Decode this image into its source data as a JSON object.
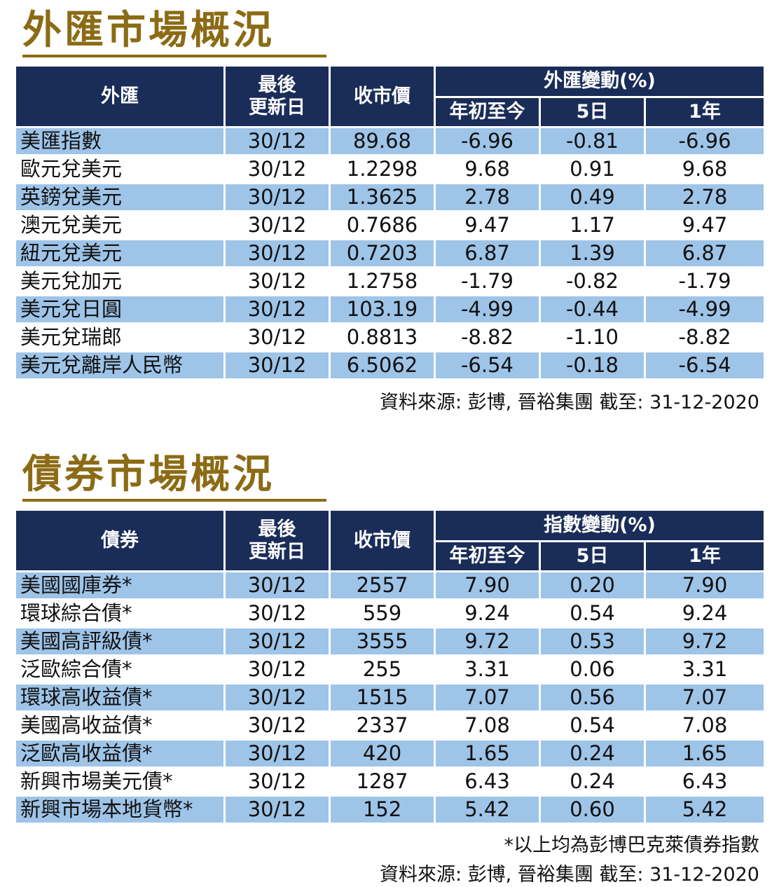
{
  "fx": {
    "title": "外匯市場概況",
    "headers": {
      "name": "外匯",
      "date_line1": "最後",
      "date_line2": "更新日",
      "price": "收市價",
      "change_group": "外匯變動(%)",
      "ytd": "年初至今",
      "d5": "5日",
      "y1": "1年"
    },
    "rows": [
      {
        "name": "美匯指數",
        "date": "30/12",
        "price": "89.68",
        "ytd": "-6.96",
        "d5": "-0.81",
        "y1": "-6.96"
      },
      {
        "name": "歐元兌美元",
        "date": "30/12",
        "price": "1.2298",
        "ytd": "9.68",
        "d5": "0.91",
        "y1": "9.68"
      },
      {
        "name": "英鎊兌美元",
        "date": "30/12",
        "price": "1.3625",
        "ytd": "2.78",
        "d5": "0.49",
        "y1": "2.78"
      },
      {
        "name": "澳元兌美元",
        "date": "30/12",
        "price": "0.7686",
        "ytd": "9.47",
        "d5": "1.17",
        "y1": "9.47"
      },
      {
        "name": "紐元兌美元",
        "date": "30/12",
        "price": "0.7203",
        "ytd": "6.87",
        "d5": "1.39",
        "y1": "6.87"
      },
      {
        "name": "美元兌加元",
        "date": "30/12",
        "price": "1.2758",
        "ytd": "-1.79",
        "d5": "-0.82",
        "y1": "-1.79"
      },
      {
        "name": "美元兌日圓",
        "date": "30/12",
        "price": "103.19",
        "ytd": "-4.99",
        "d5": "-0.44",
        "y1": "-4.99"
      },
      {
        "name": "美元兌瑞郎",
        "date": "30/12",
        "price": "0.8813",
        "ytd": "-8.82",
        "d5": "-1.10",
        "y1": "-8.82"
      },
      {
        "name": "美元兌離岸人民幣",
        "date": "30/12",
        "price": "6.5062",
        "ytd": "-6.54",
        "d5": "-0.18",
        "y1": "-6.54"
      }
    ],
    "source": "資料來源: 彭博, 晉裕集團 截至:  31-12-2020"
  },
  "bond": {
    "title": "債券市場概況",
    "headers": {
      "name": "債券",
      "date_line1": "最後",
      "date_line2": "更新日",
      "price": "收市價",
      "change_group": "指數變動(%)",
      "ytd": "年初至今",
      "d5": "5日",
      "y1": "1年"
    },
    "rows": [
      {
        "name": "美國國庫券*",
        "date": "30/12",
        "price": "2557",
        "ytd": "7.90",
        "d5": "0.20",
        "y1": "7.90"
      },
      {
        "name": "環球綜合債*",
        "date": "30/12",
        "price": "559",
        "ytd": "9.24",
        "d5": "0.54",
        "y1": "9.24"
      },
      {
        "name": "美國高評級債*",
        "date": "30/12",
        "price": "3555",
        "ytd": "9.72",
        "d5": "0.53",
        "y1": "9.72"
      },
      {
        "name": "泛歐綜合債*",
        "date": "30/12",
        "price": "255",
        "ytd": "3.31",
        "d5": "0.06",
        "y1": "3.31"
      },
      {
        "name": "環球高收益債*",
        "date": "30/12",
        "price": "1515",
        "ytd": "7.07",
        "d5": "0.56",
        "y1": "7.07"
      },
      {
        "name": "美國高收益債*",
        "date": "30/12",
        "price": "2337",
        "ytd": "7.08",
        "d5": "0.54",
        "y1": "7.08"
      },
      {
        "name": "泛歐高收益債*",
        "date": "30/12",
        "price": "420",
        "ytd": "1.65",
        "d5": "0.24",
        "y1": "1.65"
      },
      {
        "name": "新興市場美元債*",
        "date": "30/12",
        "price": "1287",
        "ytd": "6.43",
        "d5": "0.24",
        "y1": "6.43"
      },
      {
        "name": "新興市場本地貨幣*",
        "date": "30/12",
        "price": "152",
        "ytd": "5.42",
        "d5": "0.60",
        "y1": "5.42"
      }
    ],
    "footnote": "*以上均為彭博巴克萊債券指數",
    "source": "資料來源: 彭博, 晉裕集團 截至:  31-12-2020"
  },
  "colors": {
    "title": "#8b6b14",
    "header_bg": "#1a2c58",
    "row_stripe": "#9ec4e8"
  }
}
